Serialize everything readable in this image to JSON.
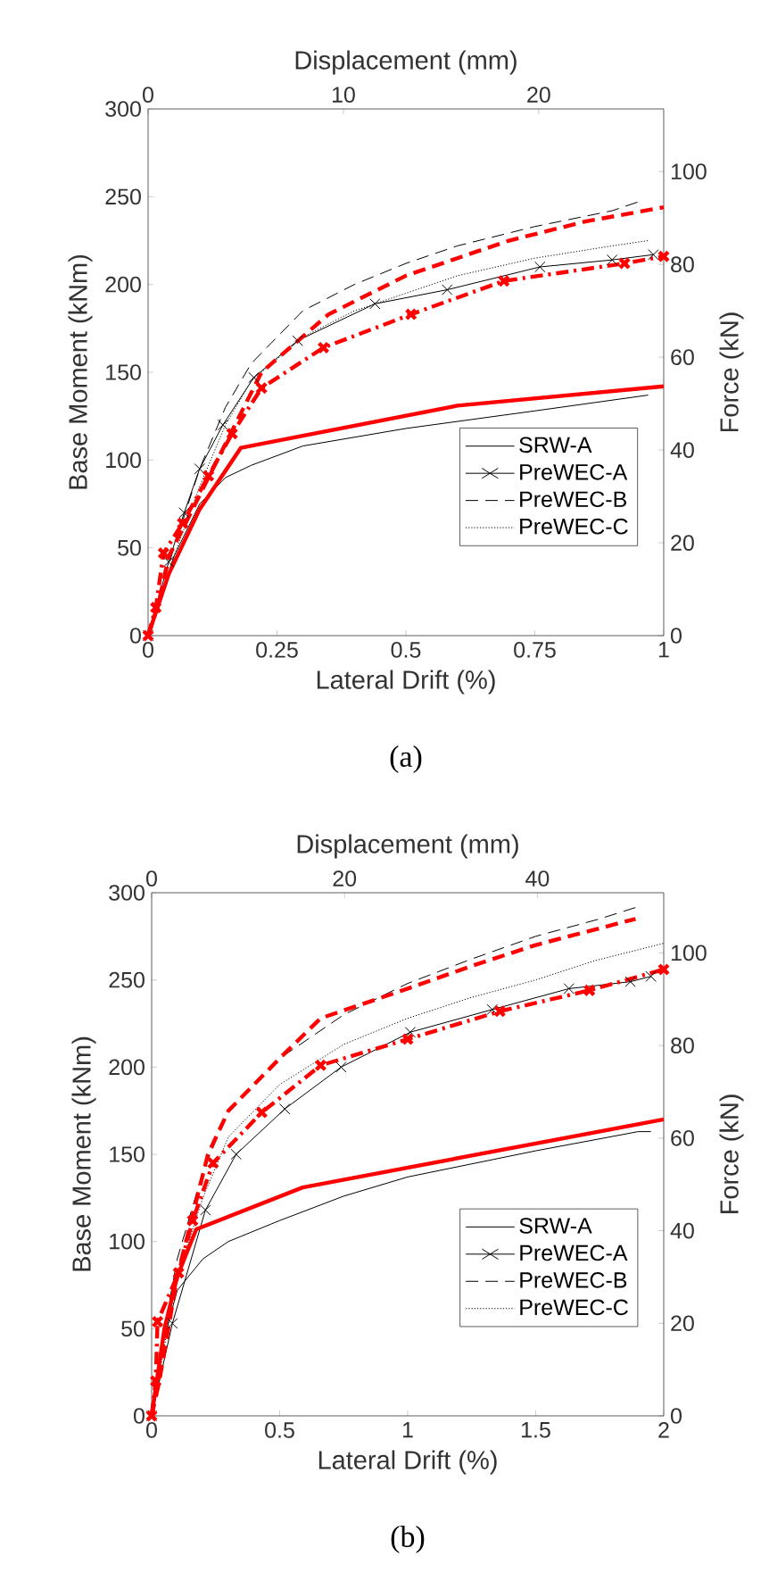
{
  "chart_data": [
    {
      "type": "line",
      "xlabel": "Lateral Drift (%)",
      "ylabel": "Base Moment (kNm)",
      "y2label": "Force (kN)",
      "x2label": "Displacement (mm)",
      "annotations": [
        "(a)"
      ],
      "xlim": [
        0,
        1
      ],
      "xticks": [
        0,
        0.25,
        0.5,
        0.75,
        1
      ],
      "ylim": [
        0,
        300
      ],
      "yticks": [
        0,
        50,
        100,
        150,
        200,
        250,
        300
      ],
      "y2lim": [
        0,
        113.5
      ],
      "y2ticks": [
        0,
        20,
        40,
        60,
        80,
        100
      ],
      "x2lim": [
        0,
        26.4
      ],
      "x2ticks": [
        0,
        10,
        20
      ],
      "legend": "bottom right",
      "series": [
        {
          "name": "SRW-A",
          "color": "#000000",
          "line_style": "solid",
          "marker": "none",
          "x": [
            0,
            0.05,
            0.1,
            0.15,
            0.2,
            0.3,
            0.5,
            0.75,
            0.97
          ],
          "values": [
            0,
            45,
            75,
            90,
            97,
            108,
            118,
            128,
            137
          ]
        },
        {
          "name": "PreWEC-A",
          "color": "#000000",
          "line_style": "solid",
          "marker": "cross",
          "x": [
            0,
            0.04,
            0.07,
            0.1,
            0.145,
            0.205,
            0.29,
            0.44,
            0.58,
            0.76,
            0.9,
            0.98
          ],
          "values": [
            0,
            42,
            70,
            95,
            120,
            147,
            168,
            189,
            197,
            210,
            214,
            217
          ]
        },
        {
          "name": "PreWEC-B",
          "color": "#000000",
          "line_style": "dashed",
          "marker": "none",
          "x": [
            0,
            0.05,
            0.1,
            0.15,
            0.2,
            0.3,
            0.4,
            0.5,
            0.6,
            0.75,
            0.9,
            0.95
          ],
          "values": [
            0,
            50,
            95,
            130,
            155,
            185,
            200,
            212,
            222,
            233,
            242,
            247
          ]
        },
        {
          "name": "PreWEC-C",
          "color": "#000000",
          "line_style": "dotted",
          "marker": "none",
          "x": [
            0,
            0.05,
            0.1,
            0.15,
            0.2,
            0.3,
            0.4,
            0.5,
            0.6,
            0.75,
            0.9,
            0.97
          ],
          "values": [
            0,
            45,
            85,
            120,
            145,
            170,
            185,
            195,
            205,
            215,
            222,
            225
          ]
        },
        {
          "color": "#ff0000",
          "line_style": "solid",
          "marker": "none",
          "x": [
            0,
            0.04,
            0.1,
            0.18,
            0.6,
            1
          ],
          "values": [
            0,
            35,
            72,
            107,
            131,
            142
          ]
        },
        {
          "color": "#ff0000",
          "line_style": "dashed",
          "marker": "none",
          "x": [
            0,
            0.02,
            0.04,
            0.1,
            0.16,
            0.22,
            0.35,
            0.5,
            0.7,
            0.85,
            1
          ],
          "values": [
            0,
            18,
            45,
            80,
            115,
            150,
            183,
            205,
            225,
            236,
            244
          ]
        },
        {
          "color": "#ff0000",
          "line_style": "dashdot",
          "marker": "cross",
          "x": [
            0,
            0.015,
            0.03,
            0.067,
            0.117,
            0.163,
            0.22,
            0.34,
            0.51,
            0.69,
            0.924,
            1
          ],
          "values": [
            0,
            16,
            47,
            64,
            91,
            115,
            141,
            164,
            183,
            202,
            212,
            216
          ]
        }
      ]
    },
    {
      "type": "line",
      "xlabel": "Lateral Drift (%)",
      "ylabel": "Base Moment (kNm)",
      "y2label": "Force (kN)",
      "x2label": "Displacement (mm)",
      "annotations": [
        "(b)"
      ],
      "xlim": [
        0,
        2
      ],
      "xticks": [
        0,
        0.5,
        1,
        1.5,
        2
      ],
      "ylim": [
        0,
        300
      ],
      "yticks": [
        0,
        50,
        100,
        150,
        200,
        250,
        300
      ],
      "y2lim": [
        0,
        113
      ],
      "y2ticks": [
        0,
        20,
        40,
        60,
        80,
        100
      ],
      "x2lim": [
        0,
        53.1
      ],
      "x2ticks": [
        0,
        20,
        40
      ],
      "legend": "bottom right",
      "series": [
        {
          "name": "SRW-A",
          "color": "#000000",
          "line_style": "solid",
          "marker": "none",
          "x": [
            0,
            0.05,
            0.1,
            0.2,
            0.3,
            0.5,
            0.75,
            1,
            1.5,
            1.9,
            1.95
          ],
          "values": [
            0,
            45,
            72,
            90,
            100,
            112,
            126,
            137,
            152,
            163,
            163
          ]
        },
        {
          "name": "PreWEC-A",
          "color": "#000000",
          "line_style": "solid",
          "marker": "cross",
          "x": [
            0,
            0.081,
            0.21,
            0.33,
            0.52,
            0.74,
            1.01,
            1.33,
            1.63,
            1.87,
            1.95
          ],
          "values": [
            0,
            53,
            118,
            150,
            176,
            200,
            220,
            233,
            245,
            249,
            252
          ]
        },
        {
          "name": "PreWEC-B",
          "color": "#000000",
          "line_style": "dashed",
          "marker": "none",
          "x": [
            0,
            0.05,
            0.1,
            0.2,
            0.3,
            0.5,
            0.75,
            1,
            1.25,
            1.5,
            1.75,
            1.9
          ],
          "values": [
            0,
            50,
            90,
            140,
            175,
            205,
            230,
            248,
            262,
            275,
            285,
            292
          ]
        },
        {
          "name": "PreWEC-C",
          "color": "#000000",
          "line_style": "dotted",
          "marker": "none",
          "x": [
            0,
            0.1,
            0.2,
            0.3,
            0.5,
            0.75,
            1,
            1.25,
            1.5,
            1.73,
            2
          ],
          "values": [
            0,
            80,
            125,
            160,
            190,
            213,
            228,
            240,
            250,
            261,
            271
          ]
        },
        {
          "color": "#ff0000",
          "line_style": "solid",
          "marker": "none",
          "x": [
            0,
            0.05,
            0.1,
            0.174,
            0.59,
            2
          ],
          "values": [
            0,
            50,
            80,
            107,
            131,
            170
          ]
        },
        {
          "color": "#ff0000",
          "line_style": "dashed",
          "marker": "none",
          "x": [
            0,
            0.03,
            0.1,
            0.16,
            0.22,
            0.3,
            0.5,
            0.66,
            1,
            1.25,
            1.5,
            1.89
          ],
          "values": [
            0,
            20,
            80,
            115,
            150,
            175,
            205,
            228,
            245,
            258,
            270,
            285
          ]
        },
        {
          "color": "#ff0000",
          "line_style": "dashdot",
          "marker": "cross",
          "x": [
            0,
            0.016,
            0.023,
            0.105,
            0.16,
            0.24,
            0.43,
            0.66,
            1.0,
            1.36,
            1.71,
            2
          ],
          "values": [
            0,
            20,
            54,
            82,
            112,
            145,
            174,
            201,
            216,
            232,
            244,
            256
          ]
        }
      ]
    }
  ]
}
